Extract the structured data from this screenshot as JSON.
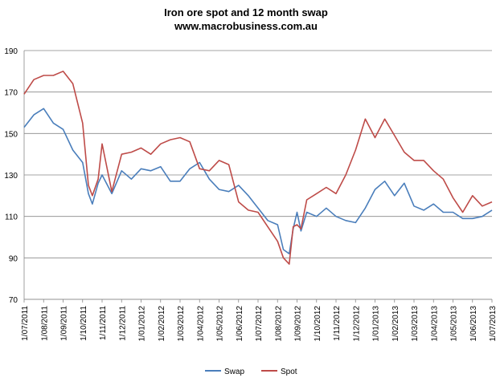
{
  "chart_data": {
    "type": "line",
    "title": "Iron ore spot and 12 month swap",
    "subtitle": "www.macrobusiness.com.au",
    "xlabel": "",
    "ylabel": "",
    "ylim": [
      70,
      190
    ],
    "y_ticks": [
      "70",
      "90",
      "110",
      "130",
      "150",
      "170",
      "190"
    ],
    "grid": true,
    "legend_position": "bottom",
    "x_tick_labels": [
      "1/07/2011",
      "1/08/2011",
      "1/09/2011",
      "1/10/2011",
      "1/11/2011",
      "1/12/2011",
      "1/01/2012",
      "1/02/2012",
      "1/03/2012",
      "1/04/2012",
      "1/05/2012",
      "1/06/2012",
      "1/07/2012",
      "1/08/2012",
      "1/09/2012",
      "1/10/2012",
      "1/11/2012",
      "1/12/2012",
      "1/01/2013",
      "1/02/2013",
      "1/03/2013",
      "1/04/2013",
      "1/05/2013",
      "1/06/2013",
      "1/07/2013"
    ],
    "x_months": [
      0,
      0.5,
      1,
      1.5,
      2,
      2.5,
      3,
      3.3,
      3.5,
      3.8,
      4,
      4.5,
      5,
      5.5,
      6,
      6.5,
      7,
      7.5,
      8,
      8.5,
      9,
      9.5,
      10,
      10.5,
      11,
      11.5,
      12,
      12.5,
      13,
      13.3,
      13.6,
      13.8,
      14,
      14.2,
      14.5,
      15,
      15.5,
      16,
      16.5,
      17,
      17.5,
      18,
      18.5,
      19,
      19.5,
      20,
      20.5,
      21,
      21.5,
      22,
      22.5,
      23,
      23.5,
      24
    ],
    "series": [
      {
        "name": "Swap",
        "color": "#4a7ebb",
        "values": [
          153,
          159,
          162,
          155,
          152,
          142,
          136,
          121,
          116,
          126,
          130,
          121,
          132,
          128,
          133,
          132,
          134,
          127,
          127,
          133,
          136,
          128,
          123,
          122,
          125,
          120,
          114,
          108,
          106,
          94,
          92,
          104,
          112,
          103,
          112,
          110,
          114,
          110,
          108,
          107,
          114,
          123,
          127,
          120,
          126,
          115,
          113,
          116,
          112,
          112,
          109,
          109,
          110,
          113
        ]
      },
      {
        "name": "Spot",
        "color": "#be4b48",
        "values": [
          169,
          176,
          178,
          178,
          180,
          174,
          155,
          125,
          120,
          128,
          145,
          122,
          140,
          141,
          143,
          140,
          145,
          147,
          148,
          146,
          133,
          132,
          137,
          135,
          117,
          113,
          112,
          105,
          98,
          90,
          87,
          105,
          106,
          104,
          118,
          121,
          124,
          121,
          130,
          142,
          157,
          148,
          157,
          149,
          141,
          137,
          137,
          132,
          128,
          119,
          112,
          120,
          115,
          117
        ]
      }
    ]
  }
}
